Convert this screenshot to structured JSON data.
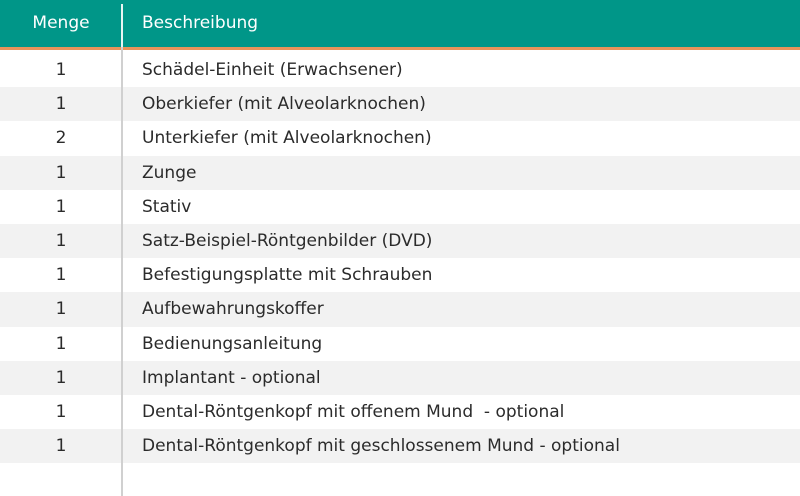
{
  "header": {
    "qty_label": "Menge",
    "desc_label": "Beschreibung"
  },
  "colors": {
    "header_bg": "#009688",
    "header_accent": "#e8935a",
    "row_alt_bg": "#f2f2f2"
  },
  "rows": [
    {
      "qty": "1",
      "desc": "Schädel-Einheit (Erwachsener)"
    },
    {
      "qty": "1",
      "desc": "Oberkiefer (mit Alveolarknochen)"
    },
    {
      "qty": "2",
      "desc": "Unterkiefer (mit Alveolarknochen)"
    },
    {
      "qty": "1",
      "desc": "Zunge"
    },
    {
      "qty": "1",
      "desc": "Stativ"
    },
    {
      "qty": "1",
      "desc": "Satz-Beispiel-Röntgenbilder (DVD)"
    },
    {
      "qty": "1",
      "desc": "Befestigungsplatte mit Schrauben"
    },
    {
      "qty": "1",
      "desc": "Aufbewahrungskoffer"
    },
    {
      "qty": "1",
      "desc": "Bedienungsanleitung"
    },
    {
      "qty": "1",
      "desc": "Implantant - optional"
    },
    {
      "qty": "1",
      "desc": "Dental-Röntgenkopf mit offenem Mund  - optional"
    },
    {
      "qty": "1",
      "desc": "Dental-Röntgenkopf mit geschlossenem Mund - optional"
    }
  ]
}
